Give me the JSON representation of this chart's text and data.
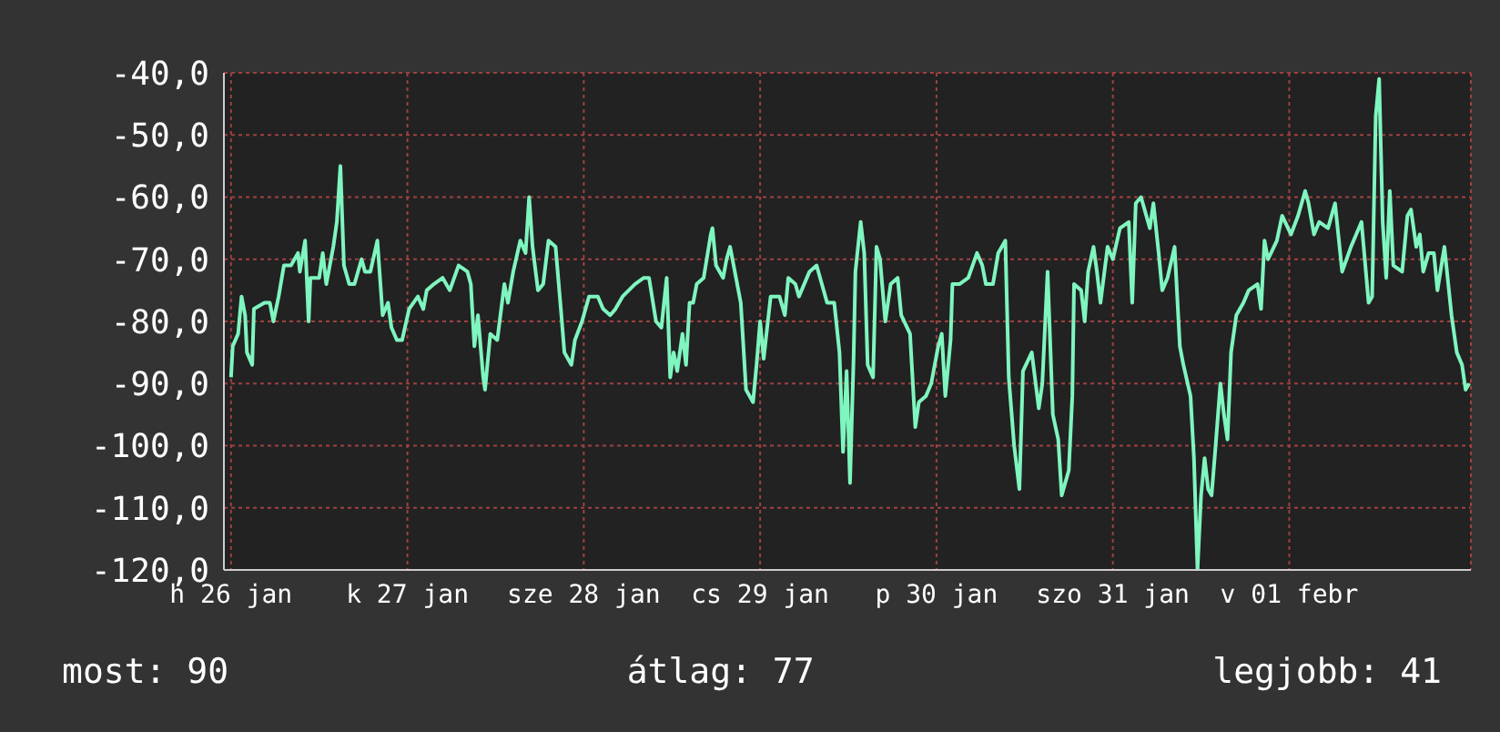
{
  "chart_data": {
    "type": "line",
    "x": [
      "--01-26T00:00",
      "--01-26T00:14",
      "--01-26T00:58",
      "--01-26T01:26",
      "--01-26T01:55",
      "--01-26T02:10",
      "--01-26T02:53",
      "--01-26T03:07",
      "--01-26T04:34",
      "--01-26T05:17",
      "--01-26T05:46",
      "--01-26T06:29",
      "--01-26T07:12",
      "--01-26T08:10",
      "--01-26T09:07",
      "--01-26T09:22",
      "--01-26T10:05",
      "--01-26T10:34",
      "--01-26T10:48",
      "--01-26T12:00",
      "--01-26T12:29",
      "--01-26T12:58",
      "--01-26T13:55",
      "--01-26T14:24",
      "--01-26T14:53",
      "--01-26T15:22",
      "--01-26T16:05",
      "--01-26T16:48",
      "--01-26T17:46",
      "--01-26T18:14",
      "--01-26T18:58",
      "--01-26T19:55",
      "--01-26T20:38",
      "--01-26T21:22",
      "--01-26T21:50",
      "--01-26T22:34",
      "--01-26T23:17",
      "--01-27T00:14",
      "--01-27T01:26",
      "--01-27T02:10",
      "--01-27T02:38",
      "--01-27T03:36",
      "--01-27T04:48",
      "--01-27T05:46",
      "--01-27T06:58",
      "--01-27T08:10",
      "--01-27T08:38",
      "--01-27T09:07",
      "--01-27T09:36",
      "--01-27T10:19",
      "--01-27T10:34",
      "--01-27T11:17",
      "--01-27T12:14",
      "--01-27T13:12",
      "--01-27T13:41",
      "--01-27T14:24",
      "--01-27T15:22",
      "--01-27T16:05",
      "--01-27T16:34",
      "--01-27T17:02",
      "--01-27T17:46",
      "--01-27T18:29",
      "--01-27T19:12",
      "--01-27T20:10",
      "--01-27T20:53",
      "--01-27T21:22",
      "--01-27T22:19",
      "--01-27T22:48",
      "--01-27T23:46",
      "--01-28T00:43",
      "--01-28T01:55",
      "--01-28T02:38",
      "--01-28T03:36",
      "--01-28T04:19",
      "--01-28T05:17",
      "--01-28T06:58",
      "--01-28T08:10",
      "--01-28T08:53",
      "--01-28T09:50",
      "--01-28T10:34",
      "--01-28T11:17",
      "--01-28T11:46",
      "--01-28T12:14",
      "--01-28T12:43",
      "--01-28T13:26",
      "--01-28T13:55",
      "--01-28T14:24",
      "--01-28T14:53",
      "--01-28T15:22",
      "--01-28T16:19",
      "--01-28T17:17",
      "--01-28T17:31",
      "--01-28T18:00",
      "--01-28T18:58",
      "--01-28T19:26",
      "--01-28T19:55",
      "--01-28T20:24",
      "--01-28T21:22",
      "--01-28T22:05",
      "--01-28T23:02",
      "--01-28T23:31",
      "--01-29T00:00",
      "--01-29T00:29",
      "--01-29T01:26",
      "--01-29T02:38",
      "--01-29T03:22",
      "--01-29T03:50",
      "--01-29T04:48",
      "--01-29T05:17",
      "--01-29T06:43",
      "--01-29T07:41",
      "--01-29T08:24",
      "--01-29T09:07",
      "--01-29T10:05",
      "--01-29T10:48",
      "--01-29T11:17",
      "--01-29T11:46",
      "--01-29T12:14",
      "--01-29T12:43",
      "--01-29T12:58",
      "--01-29T13:41",
      "--01-29T14:10",
      "--01-29T14:38",
      "--01-29T15:22",
      "--01-29T15:50",
      "--01-29T16:19",
      "--01-29T17:02",
      "--01-29T17:46",
      "--01-29T18:43",
      "--01-29T19:12",
      "--01-29T20:24",
      "--01-29T21:07",
      "--01-29T21:36",
      "--01-29T22:34",
      "--01-29T23:17",
      "--01-30T00:14",
      "--01-30T00:43",
      "--01-30T01:12",
      "--01-30T01:55",
      "--01-30T02:10",
      "--01-30T03:07",
      "--01-30T04:19",
      "--01-30T05:31",
      "--01-30T06:14",
      "--01-30T06:43",
      "--01-30T07:41",
      "--01-30T08:24",
      "--01-30T09:22",
      "--01-30T09:50",
      "--01-30T10:34",
      "--01-30T11:17",
      "--01-30T11:46",
      "--01-30T12:58",
      "--01-30T13:55",
      "--01-30T14:24",
      "--01-30T15:07",
      "--01-30T15:50",
      "--01-30T16:34",
      "--01-30T17:02",
      "--01-30T18:00",
      "--01-30T18:29",
      "--01-30T18:43",
      "--01-30T19:41",
      "--01-30T20:10",
      "--01-30T20:38",
      "--01-30T21:22",
      "--01-30T21:50",
      "--01-30T22:19",
      "--01-30T23:17",
      "--01-31T00:00",
      "--01-31T00:58",
      "--01-31T02:10",
      "--01-31T02:38",
      "--01-31T03:07",
      "--01-31T03:50",
      "--01-31T05:02",
      "--01-31T05:31",
      "--01-31T06:14",
      "--01-31T06:43",
      "--01-31T07:26",
      "--01-31T08:24",
      "--01-31T09:07",
      "--01-31T09:36",
      "--01-31T10:34",
      "--01-31T11:02",
      "--01-31T11:31",
      "--01-31T12:00",
      "--01-31T12:29",
      "--01-31T12:58",
      "--01-31T13:26",
      "--01-31T13:55",
      "--01-31T14:38",
      "--01-31T15:07",
      "--01-31T15:36",
      "--01-31T16:05",
      "--01-31T16:48",
      "--01-31T17:46",
      "--01-31T18:29",
      "--01-31T19:41",
      "--01-31T20:10",
      "--01-31T20:38",
      "--01-31T21:07",
      "--01-31T22:19",
      "--01-31T23:02",
      "--02-01T00:14",
      "--02-01T01:12",
      "--02-01T02:10",
      "--02-01T02:38",
      "--02-01T03:22",
      "--02-01T04:05",
      "--02-01T05:17",
      "--02-01T06:14",
      "--02-01T07:12",
      "--02-01T08:24",
      "--02-01T09:07",
      "--02-01T09:50",
      "--02-01T10:48",
      "--02-01T11:17",
      "--02-01T11:46",
      "--02-01T12:14",
      "--02-01T12:43",
      "--02-01T13:12",
      "--02-01T13:41",
      "--02-01T14:10",
      "--02-01T15:22",
      "--02-01T16:05",
      "--02-01T16:34",
      "--02-01T17:17",
      "--02-01T17:46",
      "--02-01T18:14",
      "--02-01T18:58",
      "--02-01T19:41",
      "--02-01T20:10",
      "--02-01T21:07",
      "--02-01T22:05",
      "--02-01T22:48",
      "--02-01T23:31",
      "--02-02T00:00",
      "--02-02T00:29"
    ],
    "series": [
      {
        "color": "#7ff5bf",
        "values": [
          -89,
          -84,
          -82,
          -76,
          -79,
          -85,
          -87,
          -78,
          -77,
          -77,
          -80,
          -76,
          -71,
          -71,
          -69,
          -72,
          -67,
          -80,
          -73,
          -73,
          -69,
          -74,
          -68,
          -64,
          -55,
          -71,
          -74,
          -74,
          -70,
          -72,
          -72,
          -67,
          -79,
          -77,
          -81,
          -83,
          -83,
          -78,
          -76,
          -78,
          -75,
          -74,
          -73,
          -75,
          -71,
          -72,
          -74,
          -84,
          -79,
          -89,
          -91,
          -82,
          -83,
          -74,
          -77,
          -72,
          -67,
          -69,
          -60,
          -68,
          -75,
          -74,
          -67,
          -68,
          -78,
          -85,
          -87,
          -83,
          -80,
          -76,
          -76,
          -78,
          -79,
          -78,
          -76,
          -74,
          -73,
          -73,
          -80,
          -81,
          -73,
          -89,
          -85,
          -88,
          -82,
          -87,
          -77,
          -77,
          -74,
          -73,
          -66,
          -65,
          -71,
          -73,
          -70,
          -68,
          -71,
          -77,
          -91,
          -93,
          -87,
          -80,
          -86,
          -76,
          -76,
          -79,
          -73,
          -74,
          -76,
          -72,
          -71,
          -74,
          -77,
          -77,
          -85,
          -101,
          -88,
          -106,
          -86,
          -72,
          -64,
          -69,
          -87,
          -89,
          -68,
          -70,
          -80,
          -74,
          -73,
          -79,
          -82,
          -97,
          -93,
          -92,
          -90,
          -84,
          -82,
          -92,
          -83,
          -74,
          -74,
          -73,
          -69,
          -71,
          -74,
          -74,
          -69,
          -67,
          -89,
          -100,
          -107,
          -88,
          -85,
          -94,
          -90,
          -72,
          -95,
          -99,
          -108,
          -104,
          -92,
          -74,
          -75,
          -80,
          -72,
          -68,
          -72,
          -77,
          -68,
          -70,
          -65,
          -64,
          -77,
          -61,
          -60,
          -65,
          -61,
          -69,
          -75,
          -73,
          -68,
          -84,
          -87,
          -92,
          -102,
          -120,
          -108,
          -102,
          -107,
          -108,
          -101,
          -90,
          -95,
          -99,
          -85,
          -79,
          -77,
          -75,
          -74,
          -78,
          -67,
          -70,
          -67,
          -63,
          -66,
          -63,
          -59,
          -61,
          -66,
          -64,
          -65,
          -61,
          -72,
          -68,
          -66,
          -64,
          -77,
          -76,
          -47,
          -41,
          -64,
          -73,
          -59,
          -71,
          -72,
          -63,
          -62,
          -68,
          -66,
          -72,
          -69,
          -69,
          -75,
          -68,
          -79,
          -85,
          -87,
          -91,
          -90
        ]
      }
    ],
    "xlim": [
      "--01-25T23:02",
      "--02-02T00:43"
    ],
    "xticks": [
      {
        "value": "--01-26",
        "label": "h 26 jan"
      },
      {
        "value": "--01-27",
        "label": "k 27 jan"
      },
      {
        "value": "--01-28",
        "label": "sze 28 jan"
      },
      {
        "value": "--01-29",
        "label": "cs 29 jan"
      },
      {
        "value": "--01-30",
        "label": "p 30 jan"
      },
      {
        "value": "--01-31",
        "label": "szo 31 jan"
      },
      {
        "value": "--02-01",
        "label": "v 01 febr"
      }
    ],
    "ylim": [
      -120,
      -40
    ],
    "yticks": [
      {
        "value": -120,
        "label": "-120,0"
      },
      {
        "value": -110,
        "label": "-110,0"
      },
      {
        "value": -100,
        "label": "-100,0"
      },
      {
        "value": -90,
        "label": "-90,0"
      },
      {
        "value": -80,
        "label": "-80,0"
      },
      {
        "value": -70,
        "label": "-70,0"
      },
      {
        "value": -60,
        "label": "-60,0"
      },
      {
        "value": -50,
        "label": "-50,0"
      },
      {
        "value": -40,
        "label": "-40,0"
      }
    ],
    "grid": true,
    "annotations": [
      "most: 90",
      "átlag: 77",
      "legjobb: 41"
    ]
  }
}
